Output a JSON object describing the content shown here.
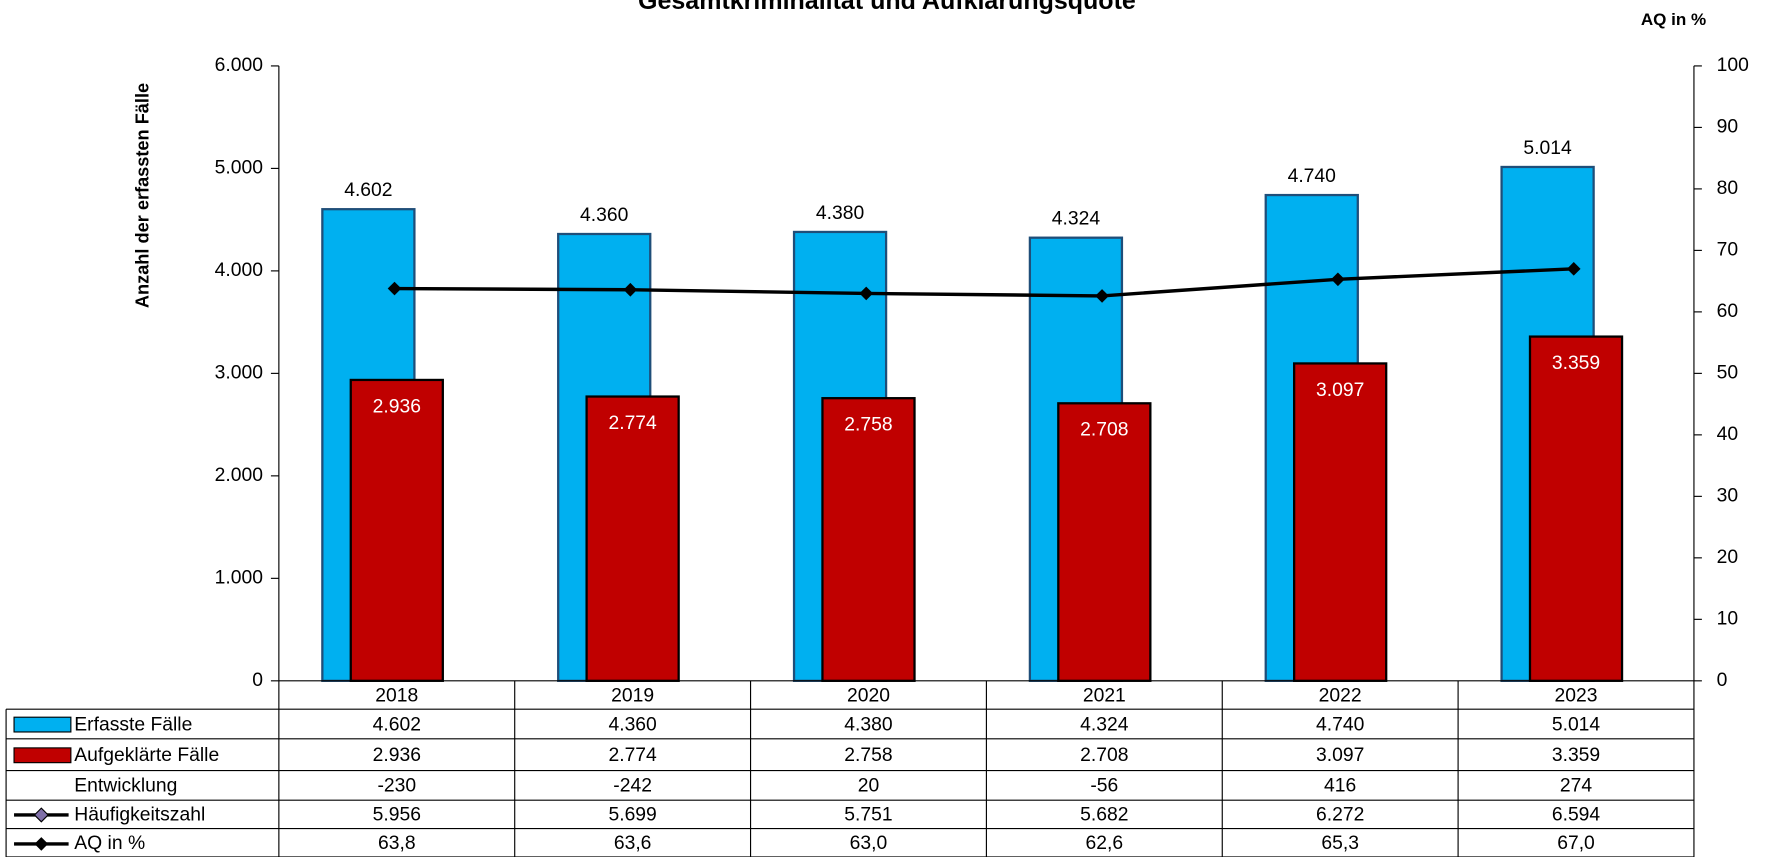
{
  "chart_data": {
    "type": "bar",
    "title": "Gesamtkriminalität und Aufklärungsquote",
    "y_label": "Anzahl der erfassten Fälle",
    "y2_label": "AQ in %",
    "categories": [
      "2018",
      "2019",
      "2020",
      "2021",
      "2022",
      "2023"
    ],
    "series": [
      {
        "name": "Erfasste Fälle",
        "type": "bar",
        "color": "#00b0f0",
        "values": [
          4602,
          4360,
          4380,
          4324,
          4740,
          5014
        ],
        "value_labels": [
          "4.602",
          "4.360",
          "4.380",
          "4.324",
          "4.740",
          "5.014"
        ]
      },
      {
        "name": "Aufgeklärte Fälle",
        "type": "bar",
        "color": "#c00000",
        "values": [
          2936,
          2774,
          2758,
          2708,
          3097,
          3359
        ],
        "value_labels": [
          "2.936",
          "2.774",
          "2.758",
          "2.708",
          "3.097",
          "3.359"
        ]
      },
      {
        "name": "AQ in %",
        "type": "line",
        "axis": "y2",
        "color": "#000000",
        "values": [
          63.8,
          63.6,
          63.0,
          62.6,
          65.3,
          67.0
        ],
        "value_labels": [
          "63,8",
          "63,6",
          "63,0",
          "62,6",
          "65,3",
          "67,0"
        ]
      }
    ],
    "table_rows": [
      {
        "name": "Entwicklung",
        "values": [
          -230,
          -242,
          20,
          -56,
          416,
          274
        ]
      },
      {
        "name": "Häufigkeitszahl",
        "values": [
          5956,
          5699,
          5751,
          5682,
          6272,
          6594
        ],
        "value_labels": [
          "5.956",
          "5.699",
          "5.751",
          "5.682",
          "6.272",
          "6.594"
        ]
      }
    ],
    "ylim": [
      0,
      6000
    ],
    "yticks": [
      0,
      {
        "value": 1000,
        "label": "1.000"
      },
      {
        "value": 2000,
        "label": "2.000"
      },
      {
        "value": 3000,
        "label": "3.000"
      },
      {
        "value": 4000,
        "label": "4.000"
      },
      {
        "value": 5000,
        "label": "5.000"
      },
      {
        "value": 6000,
        "label": "6.000"
      }
    ],
    "y2lim": [
      0,
      100
    ],
    "y2ticks": [
      0,
      10,
      20,
      30,
      40,
      50,
      60,
      70,
      80,
      90,
      100
    ]
  }
}
